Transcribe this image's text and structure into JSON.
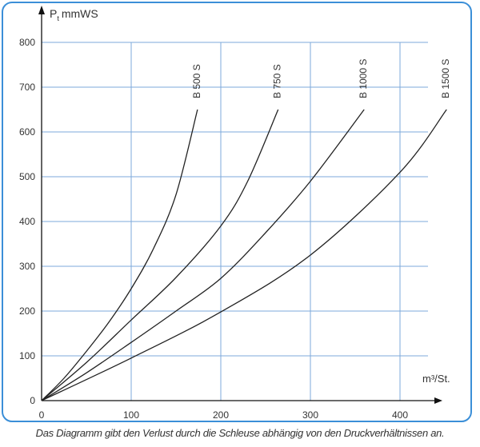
{
  "chart_data": {
    "type": "line",
    "y_label": "P",
    "y_label_sub": "t",
    "y_label_unit": "mmWS",
    "x_label": "m³/St.",
    "caption": "Das Diagramm gibt den Verlust durch die Schleuse abhängig von den Druckverhältnissen an.",
    "xlim": [
      0,
      440
    ],
    "ylim": [
      0,
      800
    ],
    "xticks": [
      0,
      100,
      200,
      300,
      400
    ],
    "yticks": [
      0,
      100,
      200,
      300,
      400,
      500,
      600,
      700,
      800
    ],
    "grid": true,
    "grid_color": "#7eaadb",
    "series": [
      {
        "name": "B 500 S",
        "color": "#222222",
        "x": [
          0,
          25,
          50,
          75,
          100,
          125,
          150,
          174
        ],
        "values": [
          0,
          50,
          110,
          175,
          250,
          340,
          460,
          650
        ]
      },
      {
        "name": "B 750 S",
        "color": "#222222",
        "x": [
          0,
          50,
          100,
          150,
          200,
          230,
          264
        ],
        "values": [
          0,
          85,
          180,
          275,
          390,
          490,
          650
        ]
      },
      {
        "name": "B 1000 S",
        "color": "#222222",
        "x": [
          0,
          50,
          100,
          150,
          200,
          250,
          300,
          360
        ],
        "values": [
          0,
          62,
          130,
          200,
          273,
          375,
          490,
          650
        ]
      },
      {
        "name": "B 1500 S",
        "color": "#222222",
        "x": [
          0,
          100,
          200,
          300,
          400,
          452
        ],
        "values": [
          0,
          95,
          198,
          325,
          510,
          650
        ]
      }
    ]
  }
}
